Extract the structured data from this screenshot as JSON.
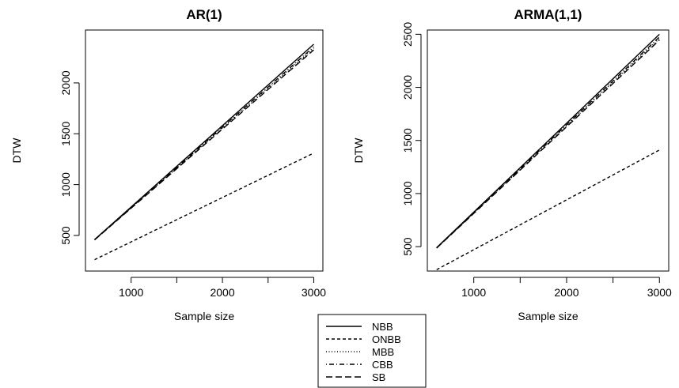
{
  "chart_data": [
    {
      "type": "line",
      "title": "AR(1)",
      "xlabel": "Sample size",
      "ylabel": "DTW",
      "xlim": [
        500,
        3100
      ],
      "ylim": [
        150,
        2520
      ],
      "xticks": [
        1000,
        2000,
        3000
      ],
      "yticks": [
        500,
        1000,
        1500,
        2000
      ],
      "grid": false,
      "series": [
        {
          "name": "NBB",
          "x": [
            600,
            3000
          ],
          "y": [
            460,
            2380
          ],
          "dash": "solid"
        },
        {
          "name": "ONBB",
          "x": [
            600,
            3000
          ],
          "y": [
            262,
            1310
          ],
          "dash": "dashed"
        },
        {
          "name": "MBB",
          "x": [
            600,
            3000
          ],
          "y": [
            458,
            2340
          ],
          "dash": "dotted"
        },
        {
          "name": "CBB",
          "x": [
            600,
            3000
          ],
          "y": [
            458,
            2355
          ],
          "dash": "dotdash"
        },
        {
          "name": "SB",
          "x": [
            600,
            3000
          ],
          "y": [
            456,
            2325
          ],
          "dash": "longdash"
        }
      ]
    },
    {
      "type": "line",
      "title": "ARMA(1,1)",
      "xlabel": "Sample size",
      "ylabel": "DTW",
      "xlim": [
        500,
        3100
      ],
      "ylim": [
        270,
        2540
      ],
      "xticks": [
        1000,
        2000,
        3000
      ],
      "yticks": [
        500,
        1000,
        1500,
        2000,
        2500
      ],
      "grid": false,
      "series": [
        {
          "name": "NBB",
          "x": [
            600,
            3000
          ],
          "y": [
            490,
            2500
          ],
          "dash": "solid"
        },
        {
          "name": "ONBB",
          "x": [
            600,
            3000
          ],
          "y": [
            283,
            1410
          ],
          "dash": "dashed"
        },
        {
          "name": "MBB",
          "x": [
            600,
            3000
          ],
          "y": [
            488,
            2460
          ],
          "dash": "dotted"
        },
        {
          "name": "CBB",
          "x": [
            600,
            3000
          ],
          "y": [
            488,
            2475
          ],
          "dash": "dotdash"
        },
        {
          "name": "SB",
          "x": [
            600,
            3000
          ],
          "y": [
            486,
            2445
          ],
          "dash": "longdash"
        }
      ]
    }
  ],
  "legend": {
    "placement": "bottom-center",
    "items": [
      {
        "label": "NBB",
        "dash": "solid"
      },
      {
        "label": "ONBB",
        "dash": "dashed"
      },
      {
        "label": "MBB",
        "dash": "dotted"
      },
      {
        "label": "CBB",
        "dash": "dotdash"
      },
      {
        "label": "SB",
        "dash": "longdash"
      }
    ]
  }
}
